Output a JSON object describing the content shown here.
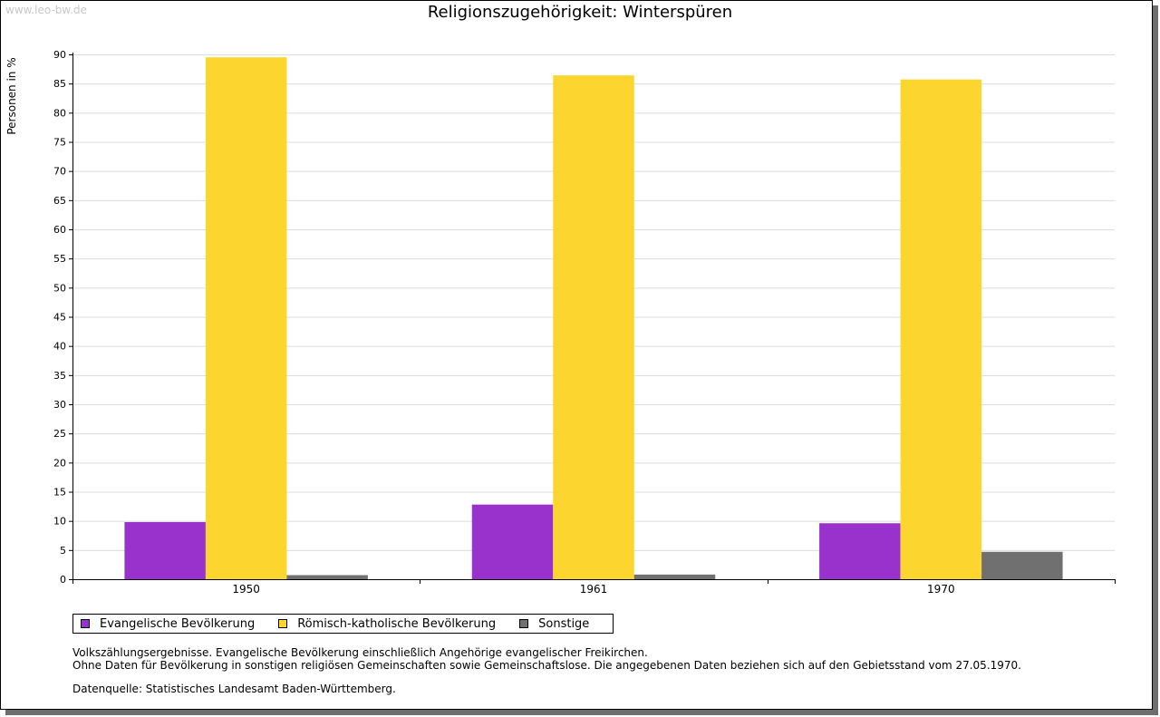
{
  "watermark": "www.leo-bw.de",
  "chart_data": {
    "type": "bar",
    "title": "Religionszugehörigkeit: Winterspüren",
    "xlabel": "",
    "ylabel": "Personen in %",
    "ylim": [
      0,
      90
    ],
    "yticks": [
      0,
      5,
      10,
      15,
      20,
      25,
      30,
      35,
      40,
      45,
      50,
      55,
      60,
      65,
      70,
      75,
      80,
      85,
      90
    ],
    "grid": true,
    "legend_position": "bottom-left",
    "categories": [
      "1950",
      "1961",
      "1970"
    ],
    "series": [
      {
        "name": "Evangelische Bevölkerung",
        "color": "#9932cc",
        "values": [
          9.8,
          12.8,
          9.6
        ]
      },
      {
        "name": "Römisch-katholische Bevölkerung",
        "color": "#fcd52f",
        "values": [
          89.5,
          86.4,
          85.7
        ]
      },
      {
        "name": "Sonstige",
        "color": "#707070",
        "values": [
          0.7,
          0.8,
          4.7
        ]
      }
    ]
  },
  "notes": {
    "line1": "Volkszählungsergebnisse. Evangelische Bevölkerung einschließlich Angehörige evangelischer Freikirchen.",
    "line2": "Ohne Daten für Bevölkerung in sonstigen religiösen Gemeinschaften sowie Gemeinschaftslose. Die angegebenen Daten beziehen sich auf den Gebietsstand vom 27.05.1970.",
    "source": "Datenquelle: Statistisches Landesamt Baden-Württemberg."
  }
}
